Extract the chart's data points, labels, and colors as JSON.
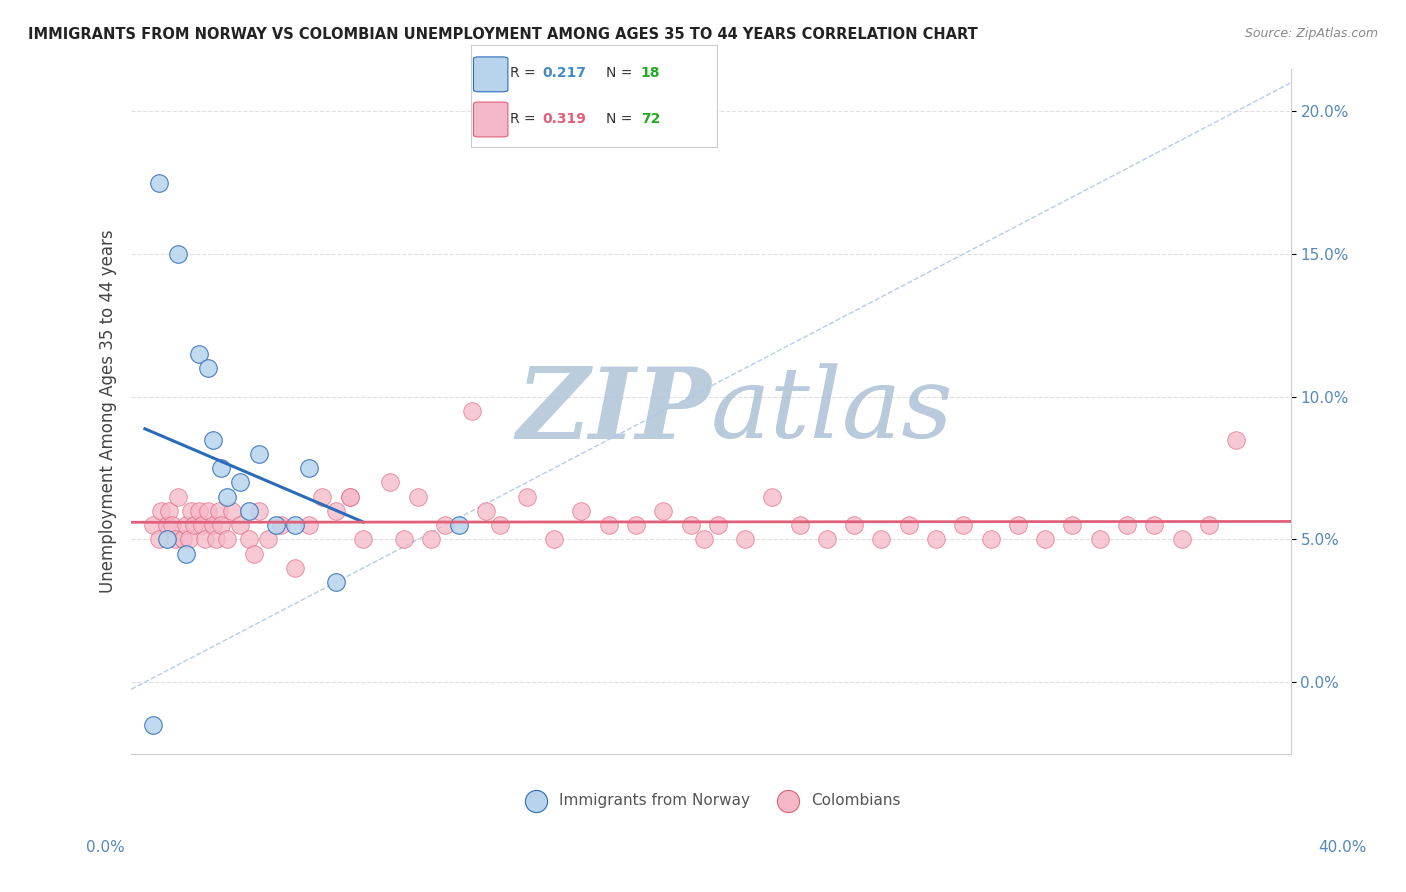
{
  "title": "IMMIGRANTS FROM NORWAY VS COLOMBIAN UNEMPLOYMENT AMONG AGES 35 TO 44 YEARS CORRELATION CHART",
  "source": "Source: ZipAtlas.com",
  "ylabel": "Unemployment Among Ages 35 to 44 years",
  "norway_R": 0.217,
  "norway_N": 18,
  "colombia_R": 0.319,
  "colombia_N": 72,
  "norway_color": "#b8d4ed",
  "norway_line_color": "#2b6cb8",
  "colombia_color": "#f5b8c8",
  "colombia_line_color": "#e0607a",
  "norway_x": [
    0.5,
    1.2,
    2.0,
    2.3,
    2.5,
    2.8,
    3.0,
    3.5,
    3.8,
    4.2,
    4.8,
    5.5,
    6.0,
    7.0,
    0.8,
    1.5,
    11.5,
    0.3
  ],
  "norway_y": [
    17.5,
    15.0,
    11.5,
    11.0,
    8.5,
    7.5,
    6.5,
    7.0,
    6.0,
    8.0,
    5.5,
    5.5,
    7.5,
    3.5,
    5.0,
    4.5,
    5.5,
    -1.5
  ],
  "colombia_x": [
    0.3,
    0.5,
    0.6,
    0.8,
    0.9,
    1.0,
    1.1,
    1.2,
    1.4,
    1.5,
    1.6,
    1.7,
    1.8,
    2.0,
    2.1,
    2.2,
    2.3,
    2.5,
    2.6,
    2.7,
    2.8,
    3.0,
    3.2,
    3.5,
    3.8,
    4.0,
    4.5,
    5.0,
    5.5,
    6.0,
    6.5,
    7.0,
    7.5,
    8.0,
    9.0,
    10.0,
    11.0,
    12.0,
    12.5,
    13.0,
    14.0,
    15.0,
    16.0,
    17.0,
    18.0,
    19.0,
    20.0,
    20.5,
    21.0,
    22.0,
    23.0,
    24.0,
    25.0,
    26.0,
    27.0,
    28.0,
    29.0,
    30.0,
    31.0,
    32.0,
    33.0,
    34.0,
    35.0,
    36.0,
    37.0,
    38.0,
    39.0,
    40.0,
    10.5,
    4.2,
    9.5,
    7.5
  ],
  "colombia_y": [
    5.5,
    5.0,
    6.0,
    5.5,
    6.0,
    5.5,
    5.0,
    6.5,
    5.0,
    5.5,
    5.0,
    6.0,
    5.5,
    6.0,
    5.5,
    5.0,
    6.0,
    5.5,
    5.0,
    6.0,
    5.5,
    5.0,
    6.0,
    5.5,
    5.0,
    4.5,
    5.0,
    5.5,
    4.0,
    5.5,
    6.5,
    6.0,
    6.5,
    5.0,
    7.0,
    6.5,
    5.5,
    9.5,
    6.0,
    5.5,
    6.5,
    5.0,
    6.0,
    5.5,
    5.5,
    6.0,
    5.5,
    5.0,
    5.5,
    5.0,
    6.5,
    5.5,
    5.0,
    5.5,
    5.0,
    5.5,
    5.0,
    5.5,
    5.0,
    5.5,
    5.0,
    5.5,
    5.0,
    5.5,
    5.5,
    5.0,
    5.5,
    8.5,
    5.0,
    6.0,
    5.0,
    6.5
  ],
  "xmin": -0.5,
  "xmax": 42.0,
  "ymin": -2.5,
  "ymax": 21.5,
  "ytick_vals": [
    0.0,
    5.0,
    10.0,
    15.0,
    20.0
  ],
  "ytick_labels": [
    "0.0%",
    "5.0%",
    "10.0%",
    "15.0%",
    "20.0%"
  ],
  "xtick_left_label": "0.0%",
  "xtick_right_label": "40.0%",
  "background_color": "#ffffff",
  "grid_color": "#e0e0e0",
  "diag_line_color": "#aec6e8",
  "watermark_zip_color": "#b0c4d8",
  "watermark_atlas_color": "#9ab4cc",
  "r_n_label_color": "#4488cc",
  "n_val_color": "#22aa22",
  "legend_border_color": "#cccccc",
  "title_color": "#222222",
  "source_color": "#888888",
  "ylabel_color": "#444444",
  "tick_label_color": "#5588bb"
}
